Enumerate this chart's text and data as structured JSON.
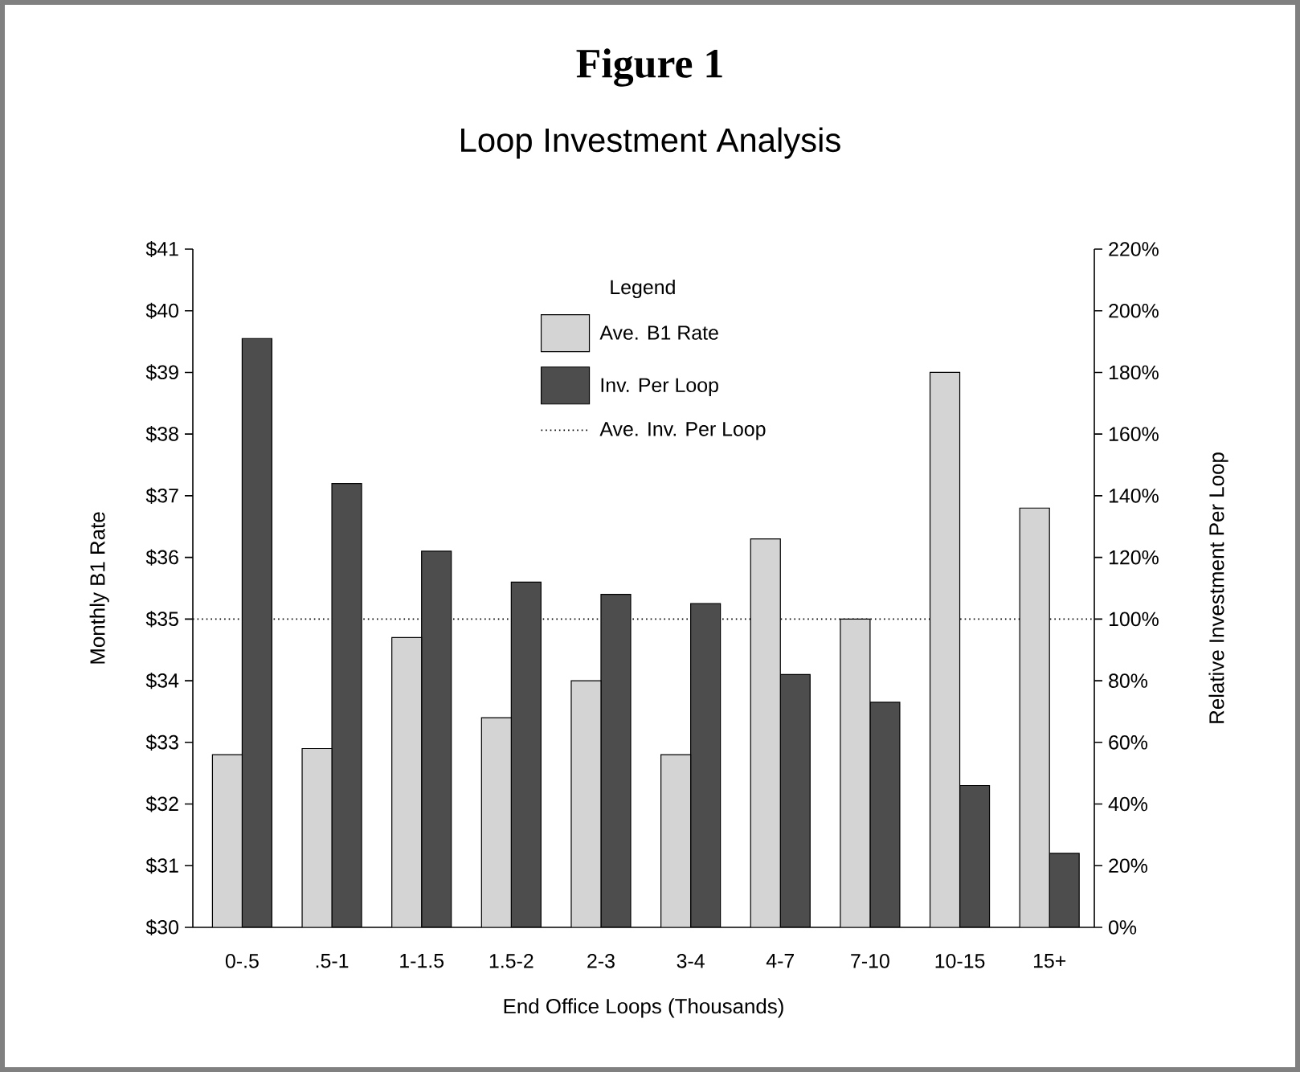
{
  "chart_data": {
    "type": "bar",
    "title": "Figure 1",
    "subtitle": "Loop Investment Analysis",
    "xlabel": "End Office Loops (Thousands)",
    "ylabel": "Monthly B1 Rate",
    "y2label": "Relative Investment Per Loop",
    "legend_title": "Legend",
    "categories": [
      "0-.5",
      ".5-1",
      "1-1.5",
      "1.5-2",
      "2-3",
      "3-4",
      "4-7",
      "7-10",
      "10-15",
      "15+"
    ],
    "series": [
      {
        "name": "Ave. B1 Rate",
        "color": "#d4d4d4",
        "values": [
          32.8,
          32.9,
          34.7,
          33.4,
          34.0,
          32.8,
          36.3,
          35.0,
          39.0,
          36.8
        ]
      },
      {
        "name": "Inv. Per Loop",
        "color": "#4d4d4d",
        "axis": "y2",
        "values": [
          191,
          144,
          122,
          112,
          108,
          105,
          82,
          73,
          46,
          24
        ]
      }
    ],
    "ylim": [
      30,
      41
    ],
    "yticks": [
      {
        "value": 30,
        "label": "$30"
      },
      {
        "value": 31,
        "label": "$31"
      },
      {
        "value": 32,
        "label": "$32"
      },
      {
        "value": 33,
        "label": "$33"
      },
      {
        "value": 34,
        "label": "$34"
      },
      {
        "value": 35,
        "label": "$35"
      },
      {
        "value": 36,
        "label": "$36"
      },
      {
        "value": 37,
        "label": "$37"
      },
      {
        "value": 38,
        "label": "$38"
      },
      {
        "value": 39,
        "label": "$39"
      },
      {
        "value": 40,
        "label": "$40"
      },
      {
        "value": 41,
        "label": "$41"
      }
    ],
    "y2lim": [
      0,
      220
    ],
    "y2ticks": [
      {
        "value": 0,
        "label": "0%"
      },
      {
        "value": 20,
        "label": "20%"
      },
      {
        "value": 40,
        "label": "40%"
      },
      {
        "value": 60,
        "label": "60%"
      },
      {
        "value": 80,
        "label": "80%"
      },
      {
        "value": 100,
        "label": "100%"
      },
      {
        "value": 120,
        "label": "120%"
      },
      {
        "value": 140,
        "label": "140%"
      },
      {
        "value": 160,
        "label": "160%"
      },
      {
        "value": 180,
        "label": "180%"
      },
      {
        "value": 200,
        "label": "200%"
      },
      {
        "value": 220,
        "label": "220%"
      }
    ],
    "ref_lines": [
      {
        "axis": "y2",
        "value": 100,
        "label": "Ave. Inv. Per Loop",
        "line_style": "dotted"
      }
    ],
    "legend": "top"
  }
}
